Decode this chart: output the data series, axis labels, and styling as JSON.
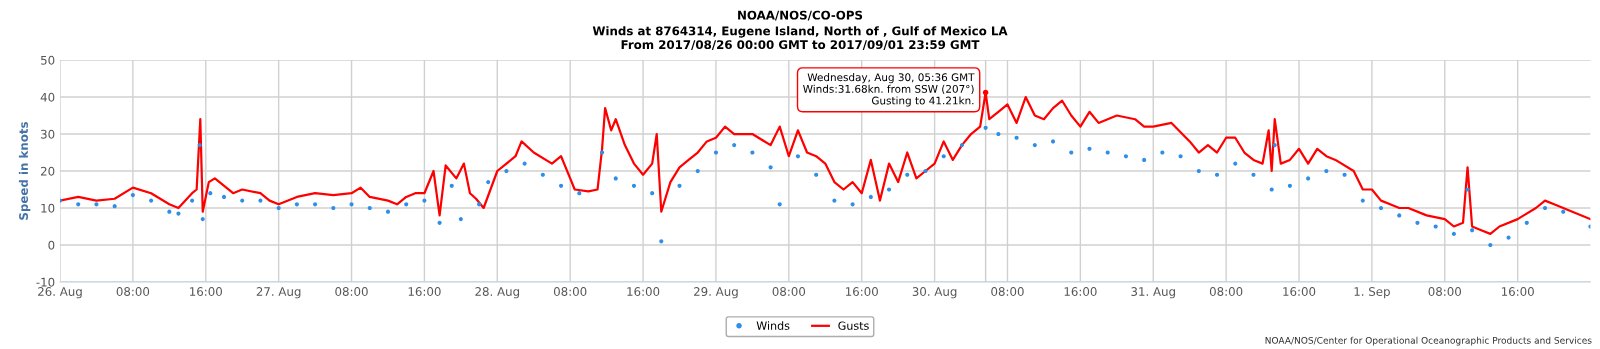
{
  "chart_data": {
    "type": "line",
    "title": "NOAA/NOS/CO-OPS",
    "subtitle": "Winds at 8764314, Eugene Island, North of , Gulf of Mexico LA\nFrom 2017/08/26 00:00 GMT to 2017/09/01 23:59 GMT",
    "ylabel": "Speed in knots",
    "xlim": [
      "2017-08-26T00:00",
      "2017-09-01T23:59"
    ],
    "xticks": [
      {
        "value": "2017-08-26T00:00",
        "label": "26. Aug"
      },
      {
        "value": "2017-08-26T08:00",
        "label": "08:00"
      },
      {
        "value": "2017-08-26T16:00",
        "label": "16:00"
      },
      {
        "value": "2017-08-27T00:00",
        "label": "27. Aug"
      },
      {
        "value": "2017-08-27T08:00",
        "label": "08:00"
      },
      {
        "value": "2017-08-27T16:00",
        "label": "16:00"
      },
      {
        "value": "2017-08-28T00:00",
        "label": "28. Aug"
      },
      {
        "value": "2017-08-28T08:00",
        "label": "08:00"
      },
      {
        "value": "2017-08-28T16:00",
        "label": "16:00"
      },
      {
        "value": "2017-08-29T00:00",
        "label": "29. Aug"
      },
      {
        "value": "2017-08-29T08:00",
        "label": "08:00"
      },
      {
        "value": "2017-08-29T16:00",
        "label": "16:00"
      },
      {
        "value": "2017-08-30T00:00",
        "label": "30. Aug"
      },
      {
        "value": "2017-08-30T08:00",
        "label": "08:00"
      },
      {
        "value": "2017-08-30T16:00",
        "label": "16:00"
      },
      {
        "value": "2017-08-31T00:00",
        "label": "31. Aug"
      },
      {
        "value": "2017-08-31T08:00",
        "label": "08:00"
      },
      {
        "value": "2017-08-31T16:00",
        "label": "16:00"
      },
      {
        "value": "2017-09-01T00:00",
        "label": "1. Sep"
      },
      {
        "value": "2017-09-01T08:00",
        "label": "08:00"
      },
      {
        "value": "2017-09-01T16:00",
        "label": "16:00"
      }
    ],
    "ylim": [
      -10,
      50
    ],
    "yticks": [
      -10,
      0,
      10,
      20,
      30,
      40,
      50
    ],
    "grid": true,
    "legend": "bottom",
    "series": [
      {
        "name": "Winds",
        "type": "scatter",
        "marker": "circle",
        "color": "#2f8fe8",
        "x": [
          "2017-08-26T00:00",
          "2017-08-26T02:00",
          "2017-08-26T04:00",
          "2017-08-26T06:00",
          "2017-08-26T08:00",
          "2017-08-26T10:00",
          "2017-08-26T12:00",
          "2017-08-26T13:00",
          "2017-08-26T14:30",
          "2017-08-26T15:20",
          "2017-08-26T15:40",
          "2017-08-26T16:30",
          "2017-08-26T18:00",
          "2017-08-26T20:00",
          "2017-08-26T22:00",
          "2017-08-27T00:00",
          "2017-08-27T02:00",
          "2017-08-27T04:00",
          "2017-08-27T06:00",
          "2017-08-27T08:00",
          "2017-08-27T10:00",
          "2017-08-27T12:00",
          "2017-08-27T14:00",
          "2017-08-27T16:00",
          "2017-08-27T17:40",
          "2017-08-27T19:00",
          "2017-08-27T20:00",
          "2017-08-27T22:00",
          "2017-08-27T23:00",
          "2017-08-28T01:00",
          "2017-08-28T03:00",
          "2017-08-28T05:00",
          "2017-08-28T07:00",
          "2017-08-28T09:00",
          "2017-08-28T11:30",
          "2017-08-28T13:00",
          "2017-08-28T15:00",
          "2017-08-28T17:00",
          "2017-08-28T18:00",
          "2017-08-28T20:00",
          "2017-08-28T22:00",
          "2017-08-29T00:00",
          "2017-08-29T02:00",
          "2017-08-29T04:00",
          "2017-08-29T06:00",
          "2017-08-29T07:00",
          "2017-08-29T09:00",
          "2017-08-29T11:00",
          "2017-08-29T13:00",
          "2017-08-29T15:00",
          "2017-08-29T17:00",
          "2017-08-29T19:00",
          "2017-08-29T21:00",
          "2017-08-29T23:00",
          "2017-08-30T01:00",
          "2017-08-30T03:00",
          "2017-08-30T05:36",
          "2017-08-30T07:00",
          "2017-08-30T09:00",
          "2017-08-30T11:00",
          "2017-08-30T13:00",
          "2017-08-30T15:00",
          "2017-08-30T17:00",
          "2017-08-30T19:00",
          "2017-08-30T21:00",
          "2017-08-30T23:00",
          "2017-08-31T01:00",
          "2017-08-31T03:00",
          "2017-08-31T05:00",
          "2017-08-31T07:00",
          "2017-08-31T09:00",
          "2017-08-31T11:00",
          "2017-08-31T13:00",
          "2017-08-31T13:20",
          "2017-08-31T15:00",
          "2017-08-31T17:00",
          "2017-08-31T19:00",
          "2017-08-31T21:00",
          "2017-08-31T23:00",
          "2017-09-01T01:00",
          "2017-09-01T03:00",
          "2017-09-01T05:00",
          "2017-09-01T07:00",
          "2017-09-01T09:00",
          "2017-09-01T10:30",
          "2017-09-01T11:00",
          "2017-09-01T13:00",
          "2017-09-01T15:00",
          "2017-09-01T17:00",
          "2017-09-01T19:00",
          "2017-09-01T21:00",
          "2017-09-01T23:59"
        ],
        "values": [
          12,
          11,
          11,
          10.5,
          13.5,
          12,
          9,
          8.5,
          12,
          27,
          7,
          14,
          13,
          12,
          12,
          10,
          11,
          11,
          10,
          11,
          10,
          9,
          11,
          12,
          6,
          16,
          7,
          11,
          17,
          20,
          22,
          19,
          16,
          14,
          25,
          18,
          16,
          14,
          1,
          16,
          20,
          25,
          27,
          25,
          21,
          11,
          24,
          19,
          12,
          11,
          13,
          15,
          19,
          20,
          24,
          27,
          31.68,
          30,
          29,
          27,
          28,
          25,
          26,
          25,
          24,
          23,
          25,
          24,
          20,
          19,
          22,
          19,
          15,
          27,
          16,
          18,
          20,
          19,
          12,
          10,
          8,
          6,
          5,
          3,
          15,
          4,
          0,
          2,
          6,
          10,
          9,
          5
        ]
      },
      {
        "name": "Gusts",
        "marker": "none",
        "color": "#ff0000",
        "x": [
          "2017-08-26T00:00",
          "2017-08-26T02:00",
          "2017-08-26T04:00",
          "2017-08-26T06:00",
          "2017-08-26T08:00",
          "2017-08-26T10:00",
          "2017-08-26T12:00",
          "2017-08-26T13:00",
          "2017-08-26T14:30",
          "2017-08-26T15:00",
          "2017-08-26T15:24",
          "2017-08-26T15:40",
          "2017-08-26T16:20",
          "2017-08-26T17:00",
          "2017-08-26T19:00",
          "2017-08-26T20:00",
          "2017-08-26T22:00",
          "2017-08-26T23:00",
          "2017-08-27T00:00",
          "2017-08-27T02:00",
          "2017-08-27T04:00",
          "2017-08-27T06:00",
          "2017-08-27T08:00",
          "2017-08-27T09:00",
          "2017-08-27T10:00",
          "2017-08-27T12:00",
          "2017-08-27T13:00",
          "2017-08-27T14:00",
          "2017-08-27T15:00",
          "2017-08-27T16:00",
          "2017-08-27T17:00",
          "2017-08-27T17:40",
          "2017-08-27T18:20",
          "2017-08-27T19:30",
          "2017-08-27T20:20",
          "2017-08-27T21:00",
          "2017-08-27T21:40",
          "2017-08-27T22:30",
          "2017-08-28T00:00",
          "2017-08-28T02:00",
          "2017-08-28T02:40",
          "2017-08-28T04:00",
          "2017-08-28T06:00",
          "2017-08-28T07:00",
          "2017-08-28T08:00",
          "2017-08-28T08:30",
          "2017-08-28T10:00",
          "2017-08-28T11:00",
          "2017-08-28T11:30",
          "2017-08-28T11:50",
          "2017-08-28T12:30",
          "2017-08-28T13:00",
          "2017-08-28T14:00",
          "2017-08-28T15:00",
          "2017-08-28T16:00",
          "2017-08-28T17:00",
          "2017-08-28T17:30",
          "2017-08-28T18:00",
          "2017-08-28T19:00",
          "2017-08-28T20:00",
          "2017-08-28T21:00",
          "2017-08-28T22:00",
          "2017-08-28T23:00",
          "2017-08-29T00:00",
          "2017-08-29T01:00",
          "2017-08-29T02:00",
          "2017-08-29T04:00",
          "2017-08-29T06:00",
          "2017-08-29T07:00",
          "2017-08-29T08:00",
          "2017-08-29T09:00",
          "2017-08-29T10:00",
          "2017-08-29T11:00",
          "2017-08-29T12:00",
          "2017-08-29T13:00",
          "2017-08-29T14:00",
          "2017-08-29T15:00",
          "2017-08-29T16:00",
          "2017-08-29T17:00",
          "2017-08-29T18:00",
          "2017-08-29T19:00",
          "2017-08-29T20:00",
          "2017-08-29T21:00",
          "2017-08-29T22:00",
          "2017-08-29T23:00",
          "2017-08-30T00:00",
          "2017-08-30T01:00",
          "2017-08-30T02:00",
          "2017-08-30T03:00",
          "2017-08-30T04:00",
          "2017-08-30T05:00",
          "2017-08-30T05:36",
          "2017-08-30T06:00",
          "2017-08-30T07:00",
          "2017-08-30T08:00",
          "2017-08-30T09:00",
          "2017-08-30T10:00",
          "2017-08-30T11:00",
          "2017-08-30T12:00",
          "2017-08-30T13:00",
          "2017-08-30T14:00",
          "2017-08-30T15:00",
          "2017-08-30T16:00",
          "2017-08-30T17:00",
          "2017-08-30T18:00",
          "2017-08-30T20:00",
          "2017-08-30T22:00",
          "2017-08-30T23:00",
          "2017-08-31T00:00",
          "2017-08-31T02:00",
          "2017-08-31T04:00",
          "2017-08-31T05:00",
          "2017-08-31T06:00",
          "2017-08-31T07:00",
          "2017-08-31T08:00",
          "2017-08-31T09:00",
          "2017-08-31T10:00",
          "2017-08-31T11:00",
          "2017-08-31T12:00",
          "2017-08-31T12:40",
          "2017-08-31T13:00",
          "2017-08-31T13:20",
          "2017-08-31T14:00",
          "2017-08-31T15:00",
          "2017-08-31T16:00",
          "2017-08-31T17:00",
          "2017-08-31T18:00",
          "2017-08-31T19:00",
          "2017-08-31T20:00",
          "2017-08-31T22:00",
          "2017-08-31T23:00",
          "2017-09-01T00:00",
          "2017-09-01T01:00",
          "2017-09-01T02:00",
          "2017-09-01T03:00",
          "2017-09-01T04:00",
          "2017-09-01T06:00",
          "2017-09-01T08:00",
          "2017-09-01T09:00",
          "2017-09-01T10:00",
          "2017-09-01T10:30",
          "2017-09-01T11:00",
          "2017-09-01T12:00",
          "2017-09-01T13:00",
          "2017-09-01T14:00",
          "2017-09-01T16:00",
          "2017-09-01T18:00",
          "2017-09-01T19:00",
          "2017-09-01T20:00",
          "2017-09-01T22:00",
          "2017-09-01T23:59"
        ],
        "values": [
          12,
          13,
          12,
          12.5,
          15.5,
          14,
          11,
          10,
          14,
          15,
          34,
          9,
          17,
          18,
          14,
          15,
          14,
          12,
          11,
          13,
          14,
          13.5,
          14,
          15.5,
          13,
          12,
          11,
          13,
          14,
          14,
          20,
          8,
          21.5,
          18,
          22,
          14,
          12.5,
          10,
          20,
          24,
          28,
          25,
          22,
          24,
          18,
          15,
          14.5,
          15,
          26,
          37,
          31,
          34,
          27,
          22,
          19,
          22,
          30,
          9,
          17,
          21,
          23,
          25,
          28,
          29,
          32,
          30,
          30,
          27,
          32,
          24,
          31,
          25,
          24,
          22,
          17,
          15,
          17,
          14,
          23,
          12,
          22,
          17,
          25,
          18,
          20,
          22,
          28,
          23,
          27,
          30,
          32,
          41.21,
          34,
          36,
          38,
          33,
          40,
          35,
          34,
          37,
          39,
          35,
          32,
          36,
          33,
          35,
          34,
          32,
          32,
          33,
          28,
          25,
          27,
          25,
          29,
          29,
          25,
          23,
          22,
          31,
          20,
          34,
          22,
          23,
          26,
          22,
          26,
          24,
          23,
          20,
          15,
          15,
          12,
          11,
          10,
          10,
          8,
          7,
          5,
          6,
          21,
          5,
          4,
          3,
          5,
          7,
          10,
          12,
          11,
          9,
          7
        ]
      }
    ],
    "ref_lines": [
      {
        "axis": "x",
        "value": "2017-08-30T05:36",
        "color": "#cccccc"
      }
    ],
    "annotations": [
      {
        "text": "Wednesday, Aug 30, 05:36 GMT\nWinds:31.68kn. from SSW (207°)\nGusting to 41.21kn.",
        "x": "2017-08-30T05:36",
        "y": 41.21
      },
      "NOAA/NOS/Center for Operational Oceanographic Products and Services"
    ]
  }
}
